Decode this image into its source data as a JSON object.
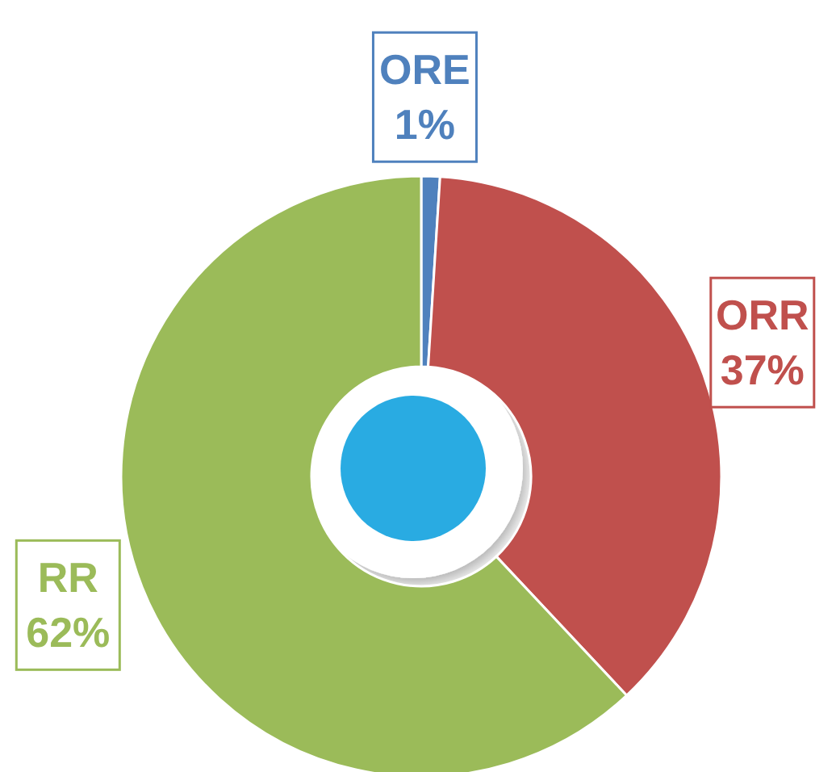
{
  "chart_data": {
    "type": "donut",
    "categories": [
      "ORE",
      "ORR",
      "RR"
    ],
    "values": [
      1,
      37,
      62
    ],
    "value_labels": [
      "1%",
      "37%",
      "62%"
    ],
    "colors": [
      "#4f81bd",
      "#c0504d",
      "#9bbb59"
    ]
  }
}
